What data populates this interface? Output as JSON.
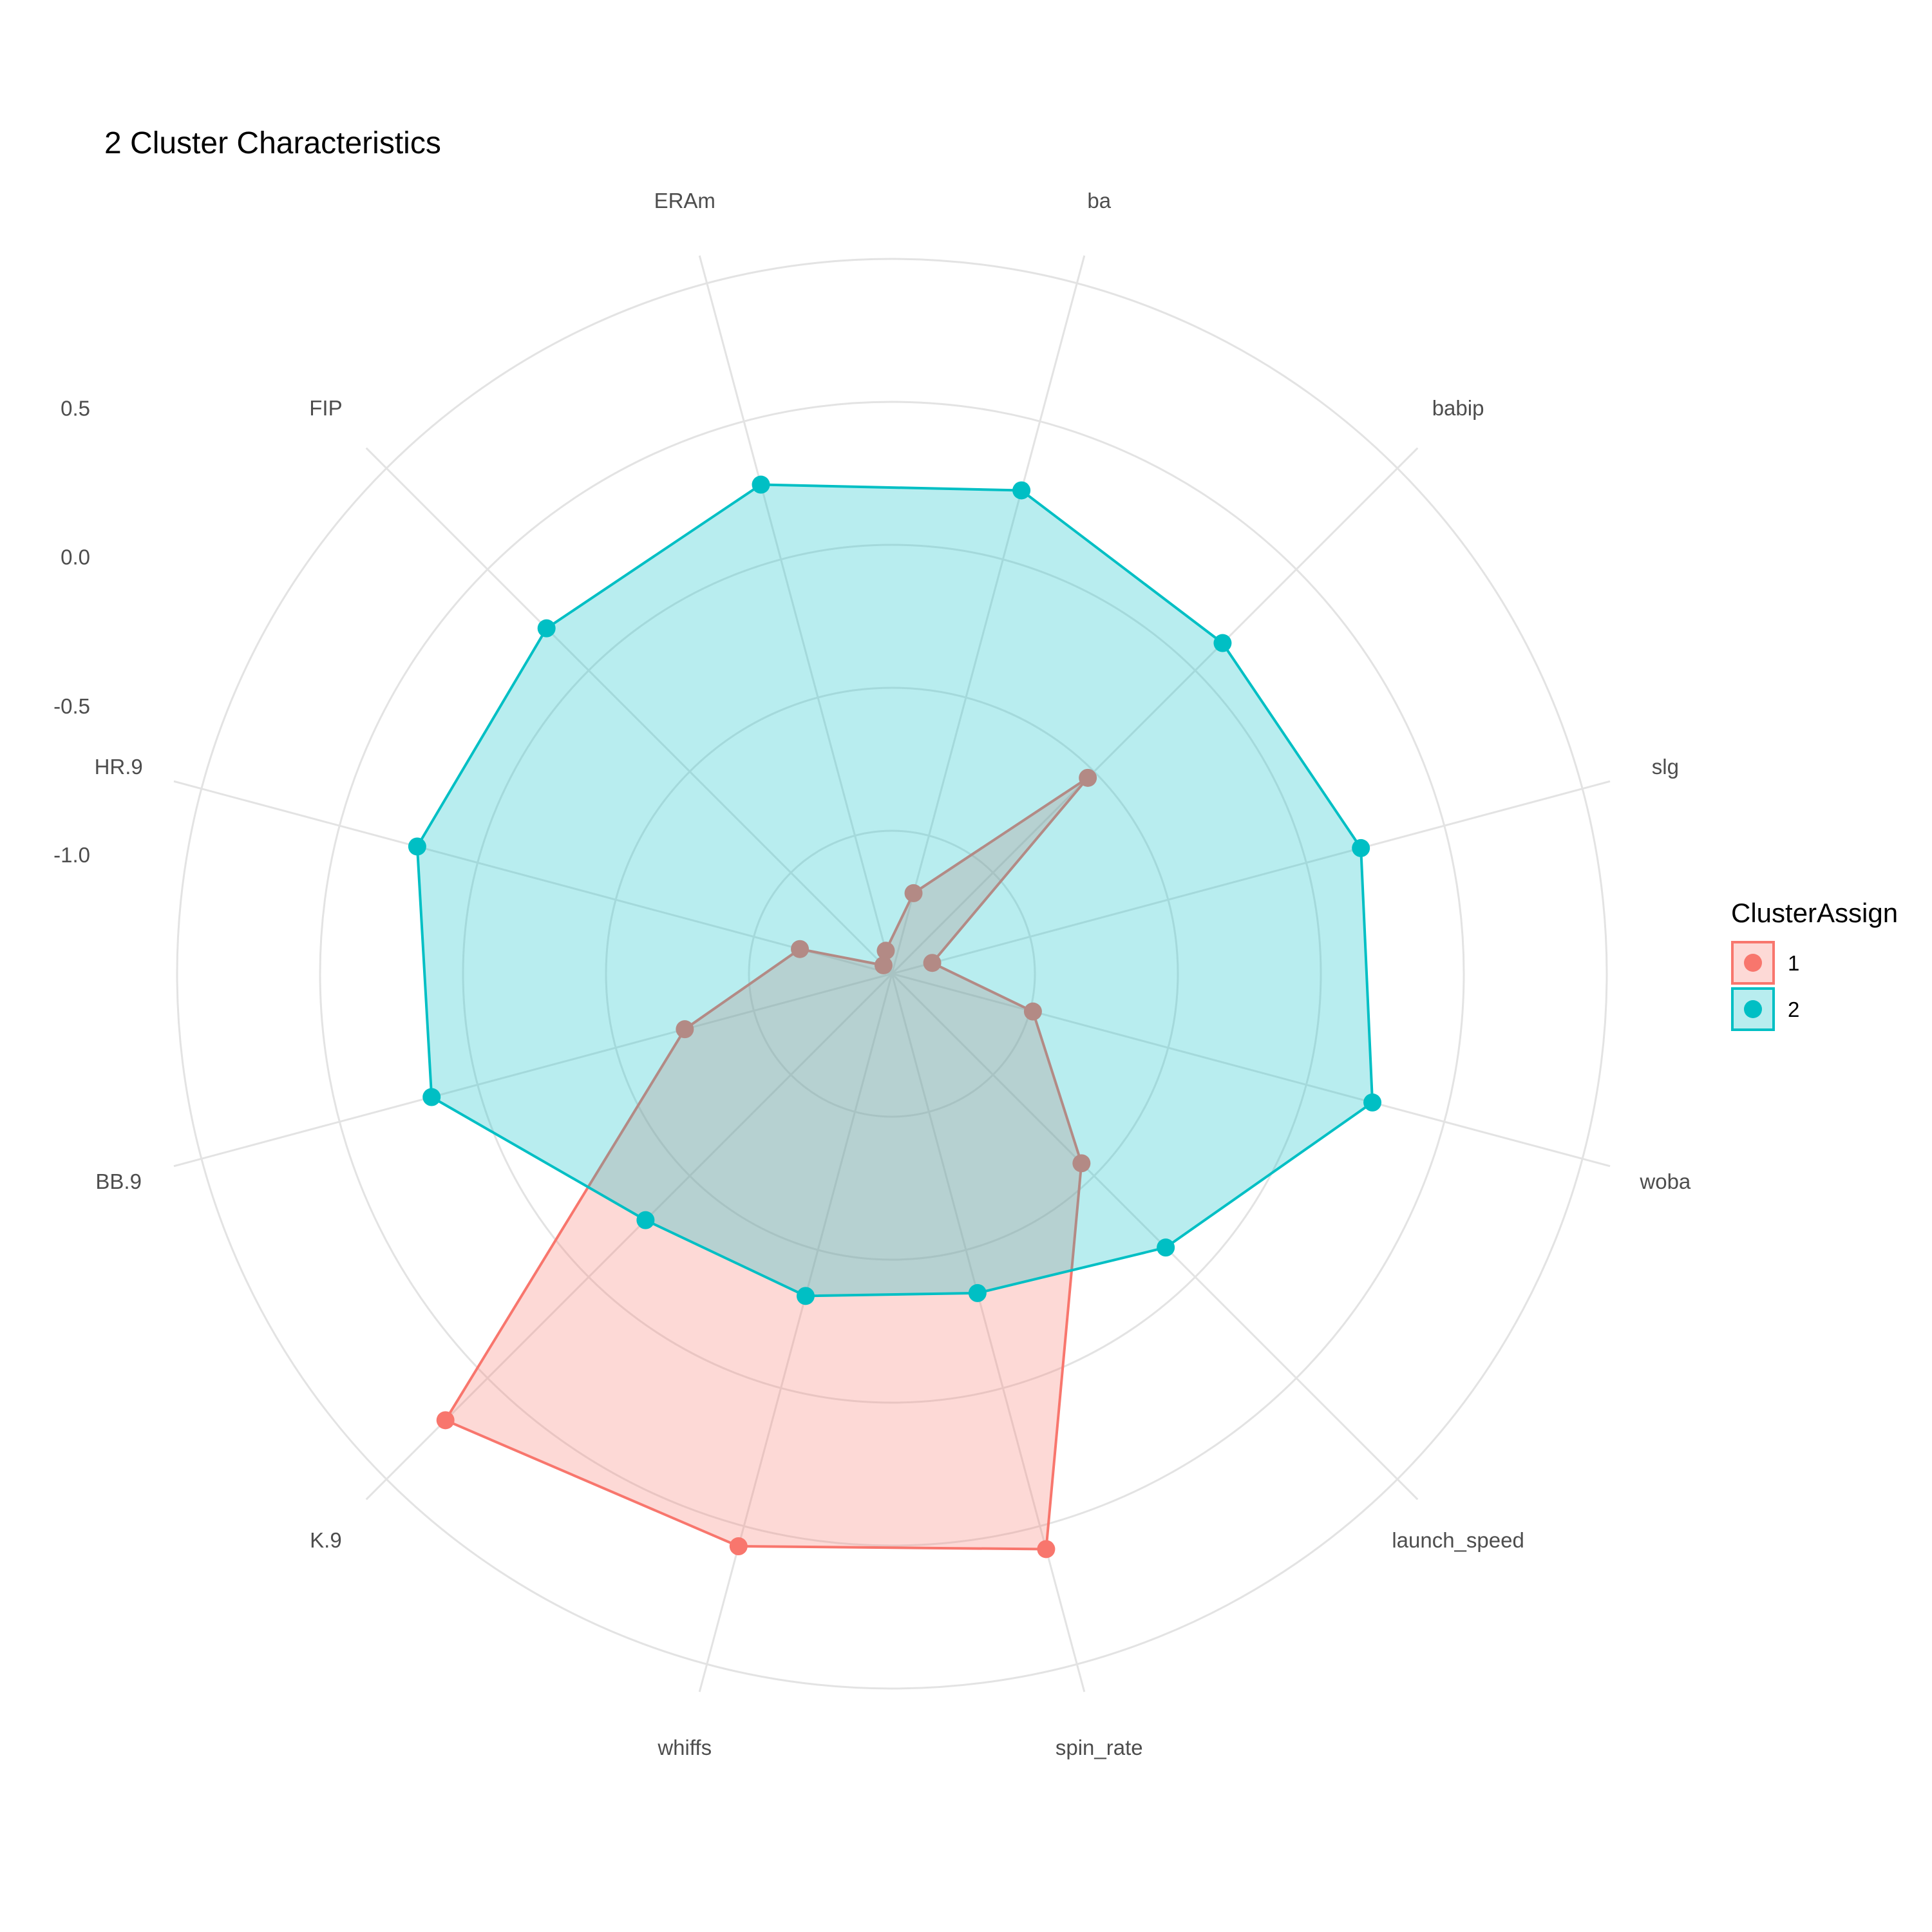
{
  "chart_data": {
    "type": "radar",
    "title": "2 Cluster Characteristics",
    "axes": [
      "ERAm",
      "ba",
      "babip",
      "slg",
      "woba",
      "launch_speed",
      "spin_rate",
      "whiffs",
      "K.9",
      "BB.9",
      "HR.9",
      "FIP"
    ],
    "radial_ticks": [
      "0.5",
      "0.0",
      "-0.5",
      "-1.0"
    ],
    "radial_tick_values": [
      0.5,
      0.0,
      -0.5,
      -1.0
    ],
    "rlim": [
      -1.4,
      1.0
    ],
    "grid": true,
    "legend": {
      "title": "ClusterAssign",
      "position": "right",
      "entries": [
        "1",
        "2"
      ]
    },
    "series": [
      {
        "name": "1",
        "color": "#F8766D",
        "values": [
          -1.32,
          -1.12,
          -0.47,
          -1.26,
          -0.91,
          -0.5,
          0.6,
          0.59,
          0.72,
          -0.68,
          -1.08,
          -1.36
        ]
      },
      {
        "name": "2",
        "color": "#00BFC4",
        "values": [
          0.3,
          0.28,
          0.17,
          0.23,
          0.27,
          -0.1,
          -0.29,
          -0.28,
          -0.23,
          0.2,
          0.25,
          0.24
        ]
      }
    ]
  }
}
